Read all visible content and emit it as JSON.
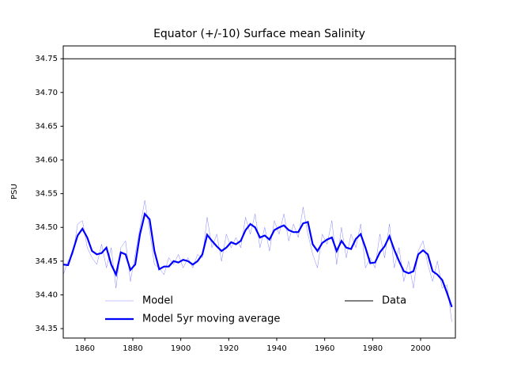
{
  "chart_data": {
    "type": "line",
    "title": "Equator (+/-10) Surface mean Salinity",
    "ylabel": "PSU",
    "x": [
      1851,
      1853,
      1855,
      1857,
      1859,
      1861,
      1863,
      1865,
      1867,
      1869,
      1871,
      1873,
      1875,
      1877,
      1879,
      1881,
      1883,
      1885,
      1887,
      1889,
      1891,
      1893,
      1895,
      1897,
      1899,
      1901,
      1903,
      1905,
      1907,
      1909,
      1911,
      1913,
      1915,
      1917,
      1919,
      1921,
      1923,
      1925,
      1927,
      1929,
      1931,
      1933,
      1935,
      1937,
      1939,
      1941,
      1943,
      1945,
      1947,
      1949,
      1951,
      1953,
      1955,
      1957,
      1959,
      1961,
      1963,
      1965,
      1967,
      1969,
      1971,
      1973,
      1975,
      1977,
      1979,
      1981,
      1983,
      1985,
      1987,
      1989,
      1991,
      1993,
      1995,
      1997,
      1999,
      2001,
      2003,
      2005,
      2007,
      2009,
      2011,
      2013
    ],
    "series": [
      {
        "name": "Model",
        "color": "#0000ff",
        "width": 0.4,
        "opacity": 0.6,
        "values": [
          34.43,
          34.45,
          34.46,
          34.505,
          34.51,
          34.47,
          34.455,
          34.445,
          34.475,
          34.44,
          34.47,
          34.41,
          34.47,
          34.48,
          34.42,
          34.46,
          34.5,
          34.54,
          34.495,
          34.445,
          34.44,
          34.43,
          34.455,
          34.445,
          34.46,
          34.44,
          34.455,
          34.44,
          34.46,
          34.455,
          34.515,
          34.47,
          34.49,
          34.45,
          34.49,
          34.47,
          34.485,
          34.47,
          34.515,
          34.49,
          34.52,
          34.47,
          34.5,
          34.465,
          34.51,
          34.49,
          34.52,
          34.48,
          34.505,
          34.485,
          34.53,
          34.49,
          34.46,
          34.44,
          34.49,
          34.475,
          34.51,
          34.445,
          34.5,
          34.455,
          34.49,
          34.47,
          34.505,
          34.44,
          34.455,
          34.44,
          34.49,
          34.455,
          34.505,
          34.44,
          34.47,
          34.42,
          34.45,
          34.41,
          34.465,
          34.48,
          34.445,
          34.42,
          34.45,
          34.41,
          34.415,
          34.36
        ]
      },
      {
        "name": "Model 5yr moving average",
        "color": "#0000ff",
        "width": 2.2,
        "opacity": 1,
        "values": [
          34.445,
          34.444,
          34.465,
          34.488,
          34.498,
          34.485,
          34.465,
          34.46,
          34.462,
          34.47,
          34.445,
          34.43,
          34.463,
          34.46,
          34.437,
          34.445,
          34.49,
          34.52,
          34.512,
          34.465,
          34.438,
          34.442,
          34.442,
          34.45,
          34.448,
          34.452,
          34.45,
          34.445,
          34.45,
          34.46,
          34.489,
          34.48,
          34.472,
          34.465,
          34.47,
          34.478,
          34.475,
          34.48,
          34.496,
          34.505,
          34.5,
          34.485,
          34.488,
          34.482,
          34.496,
          34.5,
          34.503,
          34.496,
          34.493,
          34.493,
          34.506,
          34.508,
          34.475,
          34.465,
          34.477,
          34.482,
          34.485,
          34.465,
          34.48,
          34.47,
          34.468,
          34.483,
          34.49,
          34.47,
          34.447,
          34.448,
          34.463,
          34.472,
          34.487,
          34.467,
          34.45,
          34.435,
          34.432,
          34.435,
          34.46,
          34.466,
          34.46,
          34.435,
          34.43,
          34.422,
          34.403,
          34.382
        ]
      }
    ],
    "reference_line": {
      "name": "Data",
      "value": 34.75,
      "color": "#000000"
    },
    "xlim": [
      1851,
      2014.5
    ],
    "ylim": [
      34.336,
      34.769
    ],
    "xticks": [
      1860,
      1880,
      1900,
      1920,
      1940,
      1960,
      1980,
      2000
    ],
    "yticks": [
      {
        "value": 34.35,
        "label": "34.35"
      },
      {
        "value": 34.4,
        "label": "34.40"
      },
      {
        "value": 34.45,
        "label": "34.45"
      },
      {
        "value": 34.5,
        "label": "34.50"
      },
      {
        "value": 34.55,
        "label": "34.55"
      },
      {
        "value": 34.6,
        "label": "34.60"
      },
      {
        "value": 34.65,
        "label": "34.65"
      },
      {
        "value": 34.7,
        "label": "34.70"
      },
      {
        "value": 34.75,
        "label": "34.75"
      }
    ],
    "grid": false
  }
}
